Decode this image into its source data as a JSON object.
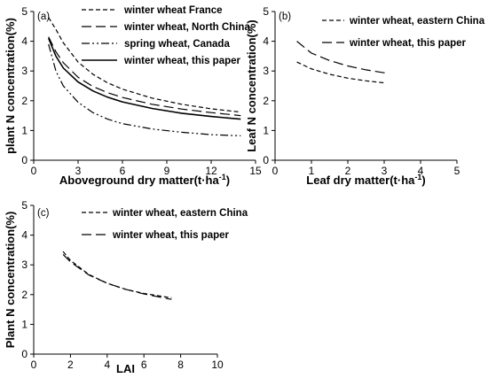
{
  "chart_data": [
    {
      "type": "line",
      "panel_label": "(a)",
      "xlabel": "Aboveground dry matter(t·ha",
      "xlabel_sup": "-1",
      "xlabel_end": ")",
      "ylabel": "plant N concentration(%)",
      "xlim": [
        0,
        15
      ],
      "ylim": [
        0,
        5
      ],
      "xticks": [
        "0",
        "3",
        "6",
        "9",
        "12",
        "15"
      ],
      "yticks": [
        "0",
        "1",
        "2",
        "3",
        "4",
        "5"
      ],
      "legend_position": "top-right",
      "series": [
        {
          "name": "winter wheat France",
          "dash": "dashed",
          "color": "#000000",
          "x": [
            1,
            1.5,
            2,
            3,
            4,
            5,
            6,
            8,
            10,
            12,
            14
          ],
          "y": [
            4.8,
            4.4,
            3.95,
            3.3,
            2.89,
            2.6,
            2.39,
            2.09,
            1.88,
            1.73,
            1.62
          ]
        },
        {
          "name": "winter wheat, North China",
          "dash": "longdash",
          "color": "#000000",
          "x": [
            1,
            1.5,
            2,
            3,
            4,
            5,
            6,
            8,
            10,
            12,
            14
          ],
          "y": [
            4.15,
            3.65,
            3.28,
            2.79,
            2.48,
            2.27,
            2.11,
            1.88,
            1.72,
            1.6,
            1.5
          ]
        },
        {
          "name": "spring wheat, Canada",
          "dash": "dashdotdot",
          "color": "#000000",
          "x": [
            1,
            1.5,
            2,
            3,
            4,
            5,
            6,
            8,
            10,
            12,
            14
          ],
          "y": [
            3.9,
            3.0,
            2.5,
            1.95,
            1.6,
            1.38,
            1.23,
            1.05,
            0.94,
            0.86,
            0.82
          ]
        },
        {
          "name": "winter wheat, this paper",
          "dash": "solid",
          "color": "#000000",
          "x": [
            1,
            1.5,
            2,
            3,
            4,
            5,
            6,
            8,
            10,
            12,
            14
          ],
          "y": [
            4.1,
            3.5,
            3.1,
            2.63,
            2.33,
            2.12,
            1.96,
            1.74,
            1.58,
            1.47,
            1.38
          ]
        }
      ]
    },
    {
      "type": "line",
      "panel_label": "(b)",
      "xlabel": "Leaf  dry matter(t·ha",
      "xlabel_sup": "-1",
      "xlabel_end": ")",
      "ylabel": "Leaf N concentration(%)",
      "xlim": [
        0,
        5
      ],
      "ylim": [
        0,
        5
      ],
      "xticks": [
        "0",
        "1",
        "2",
        "3",
        "4",
        "5"
      ],
      "yticks": [
        "0",
        "1",
        "2",
        "3",
        "4",
        "5"
      ],
      "legend_position": "top-right",
      "series": [
        {
          "name": "winter wheat, eastern China",
          "dash": "dashed",
          "color": "#000000",
          "x": [
            0.6,
            1,
            1.5,
            2,
            2.5,
            3
          ],
          "y": [
            3.3,
            3.07,
            2.89,
            2.76,
            2.67,
            2.6
          ]
        },
        {
          "name": "winter wheat, this paper",
          "dash": "longdash",
          "color": "#000000",
          "x": [
            0.6,
            1,
            1.5,
            2,
            2.5,
            3.1
          ],
          "y": [
            4.0,
            3.6,
            3.35,
            3.17,
            3.04,
            2.92
          ]
        }
      ]
    },
    {
      "type": "line",
      "panel_label": "(c)",
      "xlabel": "LAI",
      "ylabel": "Plant N concentration(%)",
      "xlim": [
        0,
        10
      ],
      "ylim": [
        0,
        5
      ],
      "xticks": [
        "0",
        "2",
        "4",
        "6",
        "8",
        "10"
      ],
      "yticks": [
        "0",
        "1",
        "2",
        "3",
        "4",
        "5"
      ],
      "legend_position": "top-right",
      "series": [
        {
          "name": "winter wheat, eastern China",
          "dash": "dashed",
          "color": "#000000",
          "x": [
            1.6,
            2,
            3,
            4,
            5,
            6,
            7,
            7.5
          ],
          "y": [
            3.45,
            3.15,
            2.68,
            2.38,
            2.18,
            2.04,
            1.94,
            1.89
          ]
        },
        {
          "name": "winter wheat, this paper",
          "dash": "longdash",
          "color": "#000000",
          "x": [
            1.6,
            2,
            3,
            4,
            5,
            6,
            7,
            7.5
          ],
          "y": [
            3.35,
            3.1,
            2.66,
            2.38,
            2.18,
            2.02,
            1.9,
            1.84
          ]
        }
      ]
    }
  ]
}
